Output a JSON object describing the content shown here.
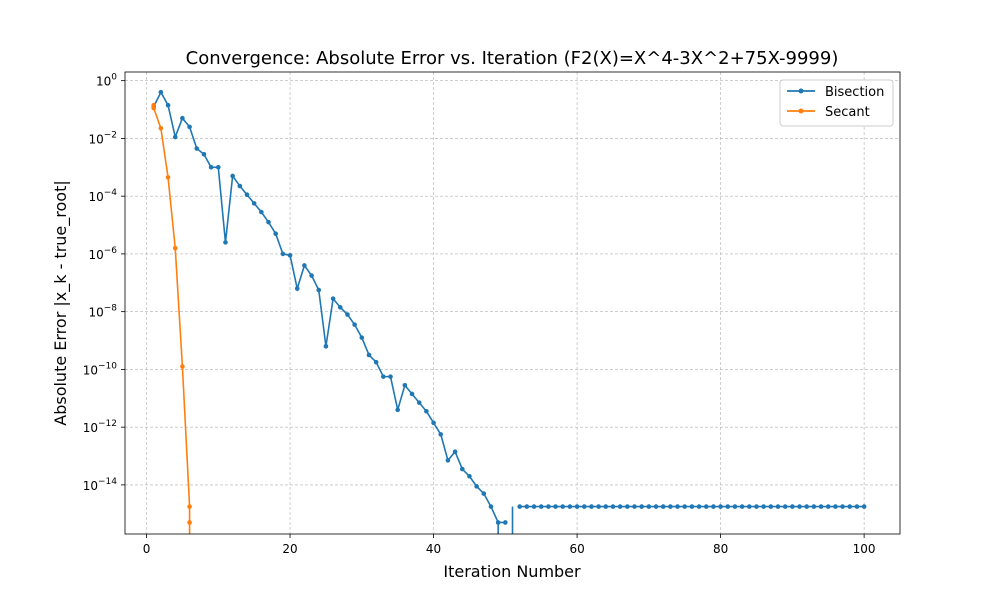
{
  "chart_data": {
    "type": "line",
    "title": "Convergence: Absolute Error vs. Iteration (F2(X)=X^4-3X^2+75X-9999)",
    "xlabel": "Iteration Number",
    "ylabel": "Absolute Error |x_k - true_root|",
    "xlim": [
      -3,
      105
    ],
    "ylim_log10": [
      -15.7,
      0.3
    ],
    "yscale": "log",
    "grid": true,
    "legend_position": "top-right",
    "x_ticks": [
      0,
      20,
      40,
      60,
      80,
      100
    ],
    "y_ticks": [
      {
        "base": "10",
        "exp": "0",
        "value": 0
      },
      {
        "base": "10",
        "exp": "−2",
        "value": -2
      },
      {
        "base": "10",
        "exp": "−4",
        "value": -4
      },
      {
        "base": "10",
        "exp": "−6",
        "value": -6
      },
      {
        "base": "10",
        "exp": "−8",
        "value": -8
      },
      {
        "base": "10",
        "exp": "−10",
        "value": -10
      },
      {
        "base": "10",
        "exp": "−12",
        "value": -12
      },
      {
        "base": "10",
        "exp": "−14",
        "value": -14
      }
    ],
    "floor_log10": -15.3,
    "series": [
      {
        "name": "Bisection",
        "color": "#1f77b4",
        "x": [
          1,
          2,
          3,
          4,
          5,
          6,
          7,
          8,
          9,
          10,
          11,
          12,
          13,
          14,
          15,
          16,
          17,
          18,
          19,
          20,
          21,
          22,
          23,
          24,
          25,
          26,
          27,
          28,
          29,
          30,
          31,
          32,
          33,
          34,
          35,
          36,
          37,
          38,
          39,
          40,
          41,
          42,
          43,
          44,
          45,
          46,
          47,
          48,
          49,
          50,
          51,
          52,
          53,
          54,
          55,
          56,
          57,
          58,
          59,
          60,
          61,
          62,
          63,
          64,
          65,
          66,
          67,
          68,
          69,
          70,
          71,
          72,
          73,
          74,
          75,
          76,
          77,
          78,
          79,
          80,
          81,
          82,
          83,
          84,
          85,
          86,
          87,
          88,
          89,
          90,
          91,
          92,
          93,
          94,
          95,
          96,
          97,
          98,
          99,
          100
        ],
        "log10_error": [
          -0.9,
          -0.4,
          -0.85,
          -1.95,
          -1.3,
          -1.6,
          -2.35,
          -2.55,
          -3.0,
          -3.0,
          -5.6,
          -3.3,
          -3.65,
          -3.95,
          -4.25,
          -4.55,
          -4.9,
          -5.3,
          -6.0,
          -6.05,
          -7.2,
          -6.4,
          -6.75,
          -7.25,
          -9.2,
          -7.55,
          -7.85,
          -8.1,
          -8.45,
          -8.9,
          -9.5,
          -9.75,
          -10.25,
          -10.25,
          -11.4,
          -10.55,
          -10.85,
          -11.15,
          -11.45,
          -11.85,
          -12.25,
          -13.15,
          -12.85,
          -13.45,
          -13.7,
          -14.05,
          -14.3,
          -14.75,
          -15.3,
          -15.3,
          null,
          -14.75,
          -14.75,
          -14.75,
          -14.75,
          -14.75,
          -14.75,
          -14.75,
          -14.75,
          -14.75,
          -14.75,
          -14.75,
          -14.75,
          -14.75,
          -14.75,
          -14.75,
          -14.75,
          -14.75,
          -14.75,
          -14.75,
          -14.75,
          -14.75,
          -14.75,
          -14.75,
          -14.75,
          -14.75,
          -14.75,
          -14.75,
          -14.75,
          -14.75,
          -14.75,
          -14.75,
          -14.75,
          -14.75,
          -14.75,
          -14.75,
          -14.75,
          -14.75,
          -14.75,
          -14.75,
          -14.75,
          -14.75,
          -14.75,
          -14.75,
          -14.75,
          -14.75,
          -14.75,
          -14.75,
          -14.75,
          -14.75
        ]
      },
      {
        "name": "Secant",
        "color": "#ff7f0e",
        "x": [
          1,
          1,
          2,
          3,
          4,
          5,
          6,
          6
        ],
        "log10_error": [
          -0.85,
          -0.95,
          -1.65,
          -3.35,
          -5.8,
          -9.9,
          -14.75,
          -15.3
        ]
      }
    ]
  }
}
